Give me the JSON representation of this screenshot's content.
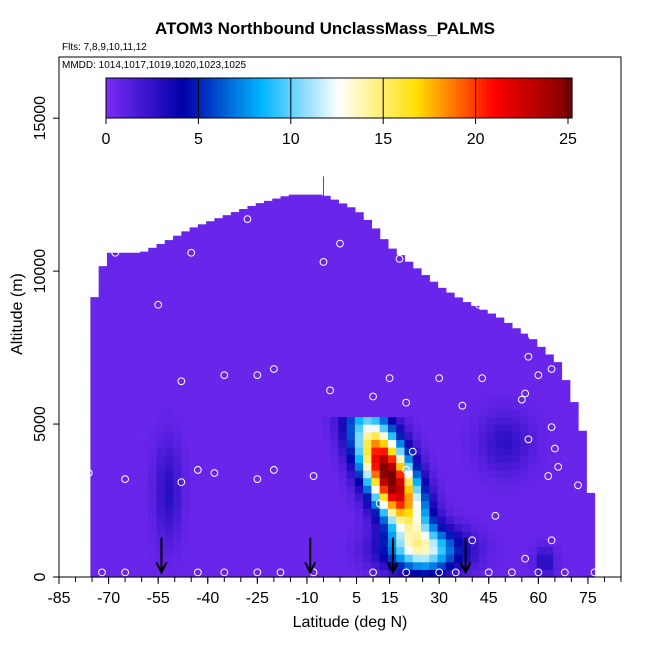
{
  "chart_data": {
    "type": "heatmap",
    "title": "ATOM3 Northbound UnclassMass_PALMS",
    "subtitle_flights": "Flts: 7,8,9,10,11,12",
    "subtitle_dates": "MMDD: 1014,1017,1019,1020,1023,1025",
    "xlabel": "Latitude (deg N)",
    "ylabel": "Altitude (m)",
    "xlim": [
      -85,
      85
    ],
    "ylim": [
      0,
      17000
    ],
    "x_ticks": [
      "-85",
      "-70",
      "-55",
      "-40",
      "-25",
      "-10",
      "5",
      "15",
      "30",
      "45",
      "60",
      "75"
    ],
    "x_tick_values": [
      -85,
      -70,
      -55,
      -40,
      -25,
      -10,
      5,
      15,
      30,
      45,
      60,
      75
    ],
    "y_ticks": [
      "0",
      "5000",
      "10000",
      "15000"
    ],
    "y_tick_values": [
      0,
      5000,
      10000,
      15000
    ],
    "colorbar": {
      "range": [
        0,
        25
      ],
      "ticks": [
        "0",
        "5",
        "10",
        "15",
        "20",
        "25"
      ],
      "tick_values": [
        0,
        5,
        10,
        15,
        20,
        25
      ],
      "colors": [
        "#7b2cf5",
        "#0000a8",
        "#00b4ff",
        "#ffffff",
        "#ffe000",
        "#ff0000",
        "#7a0000"
      ]
    },
    "envelope_top": [
      [
        -76,
        0
      ],
      [
        -75,
        7800
      ],
      [
        -74,
        9600
      ],
      [
        -70,
        10600
      ],
      [
        -60,
        10600
      ],
      [
        -52,
        11000
      ],
      [
        -45,
        11400
      ],
      [
        -35,
        11800
      ],
      [
        -25,
        12200
      ],
      [
        -15,
        12500
      ],
      [
        -5,
        12500
      ],
      [
        5,
        12000
      ],
      [
        10,
        11500
      ],
      [
        15,
        10800
      ],
      [
        22,
        10200
      ],
      [
        30,
        9500
      ],
      [
        38,
        9000
      ],
      [
        48,
        8500
      ],
      [
        58,
        7800
      ],
      [
        66,
        7000
      ],
      [
        70,
        6000
      ],
      [
        74,
        4500
      ],
      [
        77,
        1500
      ],
      [
        78,
        0
      ]
    ],
    "plume_peak": {
      "lat": 15,
      "alt": 3300,
      "value": 25
    },
    "sample_points": [
      [
        -75,
        9600
      ],
      [
        -68,
        10600
      ],
      [
        -55,
        8900
      ],
      [
        -48,
        6400
      ],
      [
        -45,
        10600
      ],
      [
        -35,
        6600
      ],
      [
        -28,
        11700
      ],
      [
        -25,
        6600
      ],
      [
        -20,
        6800
      ],
      [
        -5,
        10300
      ],
      [
        0,
        10900
      ],
      [
        -3,
        6100
      ],
      [
        10,
        5900
      ],
      [
        15,
        6500
      ],
      [
        18,
        10400
      ],
      [
        20,
        5700
      ],
      [
        30,
        6500
      ],
      [
        37,
        5600
      ],
      [
        43,
        6500
      ],
      [
        42,
        8900
      ],
      [
        55,
        5800
      ],
      [
        57,
        7200
      ],
      [
        58,
        7900
      ],
      [
        60,
        6600
      ],
      [
        64,
        6800
      ],
      [
        66,
        8500
      ],
      [
        70,
        6600
      ],
      [
        56,
        6000
      ],
      [
        57,
        4500
      ],
      [
        64,
        4900
      ],
      [
        65,
        4200
      ],
      [
        66,
        3600
      ],
      [
        63,
        3300
      ],
      [
        72,
        3000
      ],
      [
        -76,
        3400
      ],
      [
        -65,
        3200
      ],
      [
        -48,
        3100
      ],
      [
        -43,
        3500
      ],
      [
        -38,
        3400
      ],
      [
        -25,
        3200
      ],
      [
        -20,
        3500
      ],
      [
        -8,
        3300
      ],
      [
        12,
        2400
      ],
      [
        20,
        3500
      ],
      [
        22,
        4100
      ],
      [
        40,
        1200
      ],
      [
        47,
        2000
      ],
      [
        56,
        600
      ],
      [
        64,
        1200
      ],
      [
        -77,
        200
      ],
      [
        -72,
        150
      ],
      [
        -65,
        150
      ],
      [
        -43,
        150
      ],
      [
        -35,
        150
      ],
      [
        -25,
        150
      ],
      [
        -18,
        150
      ],
      [
        -8,
        150
      ],
      [
        10,
        150
      ],
      [
        20,
        150
      ],
      [
        30,
        150
      ],
      [
        35,
        150
      ],
      [
        45,
        150
      ],
      [
        52,
        150
      ],
      [
        60,
        150
      ],
      [
        68,
        150
      ],
      [
        77,
        150
      ]
    ],
    "markers_arrows": [
      -54,
      -9,
      16,
      38
    ],
    "legend_position": "top"
  }
}
